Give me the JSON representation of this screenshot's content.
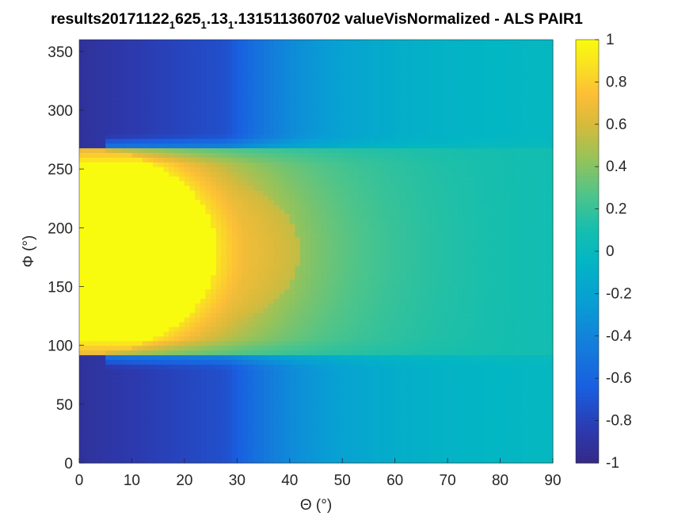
{
  "chart_data": {
    "type": "heatmap",
    "title": {
      "segments": [
        {
          "text": "results20171122",
          "sub": false
        },
        {
          "text": "1",
          "sub": true
        },
        {
          "text": "625",
          "sub": false
        },
        {
          "text": "1",
          "sub": true
        },
        {
          "text": ".13",
          "sub": false
        },
        {
          "text": "1",
          "sub": true
        },
        {
          "text": ".131511360702 valueVisNormalized - ALS PAIR1",
          "sub": false
        }
      ]
    },
    "xlabel": "Θ (°)",
    "ylabel": "Φ (°)",
    "xlim": [
      0,
      90
    ],
    "ylim": [
      0,
      360
    ],
    "xticks": [
      "0",
      "10",
      "20",
      "30",
      "40",
      "50",
      "60",
      "70",
      "80",
      "90"
    ],
    "yticks": [
      "0",
      "50",
      "100",
      "150",
      "200",
      "250",
      "300",
      "350"
    ],
    "colorbar": {
      "limits": [
        -1,
        1
      ],
      "ticks": [
        "-1",
        "-0.8",
        "-0.6",
        "-0.4",
        "-0.2",
        "0",
        "0.2",
        "0.4",
        "0.6",
        "0.8",
        "1"
      ],
      "colormap": "parula"
    },
    "field": {
      "theta_step": 1,
      "phi_step": 4,
      "lobe": {
        "phi_min": 93,
        "phi_max": 267,
        "theta_edge_at_phi_180": 40,
        "peak_value": 1.0
      },
      "background_value": 0.0,
      "dark_region_value": -0.92
    }
  }
}
